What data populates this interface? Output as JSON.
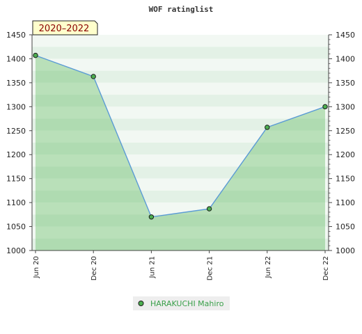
{
  "chart_data": {
    "type": "area",
    "title": "WOF ratinglist",
    "period_badge": "2020–2022",
    "xlabel": "",
    "ylabel": "",
    "x": [
      "Jun 20",
      "Dec 20",
      "Jun 21",
      "Dec 21",
      "Jun 22",
      "Dec 22"
    ],
    "series": [
      {
        "name": "HARAKUCHI Mahiro",
        "values": [
          1407,
          1363,
          1070,
          1087,
          1257,
          1300
        ]
      }
    ],
    "ylim": [
      1000,
      1450
    ],
    "yticks": [
      1000,
      1050,
      1100,
      1150,
      1200,
      1250,
      1300,
      1350,
      1400,
      1450
    ],
    "grid": true,
    "legend_position": "bottom-center",
    "colors": {
      "line": "#5b9bd5",
      "fill": "#5cb85c",
      "marker": "#4caf50",
      "legend_text": "#3aa04a",
      "badge_bg": "#ffffcc",
      "badge_text": "#8b0000"
    }
  }
}
